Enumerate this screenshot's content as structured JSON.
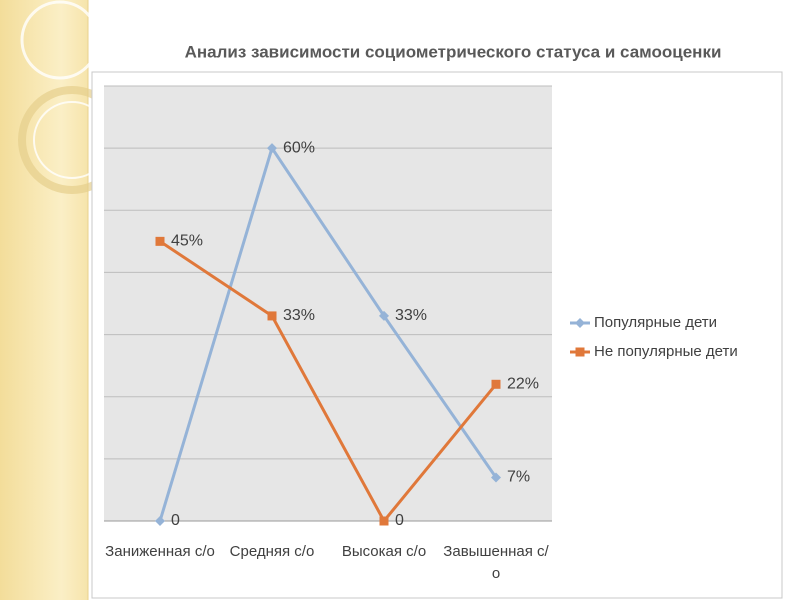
{
  "chart_data": {
    "type": "line",
    "title": "Анализ зависимости социометрического статуса и самооценки",
    "categories": [
      "Заниженная с/о",
      "Средняя с/о",
      "Высокая с/о",
      "Завышенная с/о"
    ],
    "series": [
      {
        "name": "Популярные дети",
        "color": "#95b3d7",
        "marker": "diamond",
        "values": [
          0,
          60,
          33,
          7
        ],
        "value_labels": [
          "0",
          "60%",
          "33%",
          "7%"
        ]
      },
      {
        "name": "Не популярные дети",
        "color": "#e0783a",
        "marker": "square",
        "values": [
          45,
          33,
          0,
          22
        ],
        "value_labels": [
          "45%",
          "33%",
          "0",
          "22%"
        ]
      }
    ],
    "ylim": [
      0,
      70
    ],
    "yticks": [
      0,
      10,
      20,
      30,
      40,
      50,
      60,
      70
    ],
    "show_ytick_labels": false,
    "grid": true,
    "legend": "right"
  }
}
